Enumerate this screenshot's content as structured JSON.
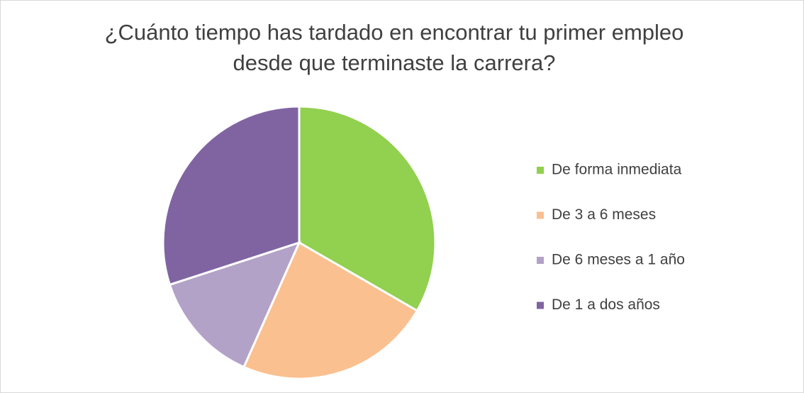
{
  "chart_data": {
    "type": "pie",
    "title": [
      "¿Cuánto tiempo has tardado en encontrar tu primer empleo",
      "desde que terminaste la carrera?"
    ],
    "categories": [
      "De forma inmediata",
      "De 3 a 6 meses",
      "De 6 meses a 1 año",
      "De 1 a dos años"
    ],
    "values": [
      10,
      7,
      4,
      9
    ],
    "colors": [
      "#92d050",
      "#fac090",
      "#b3a2c7",
      "#8064a2"
    ],
    "legend": "right"
  }
}
